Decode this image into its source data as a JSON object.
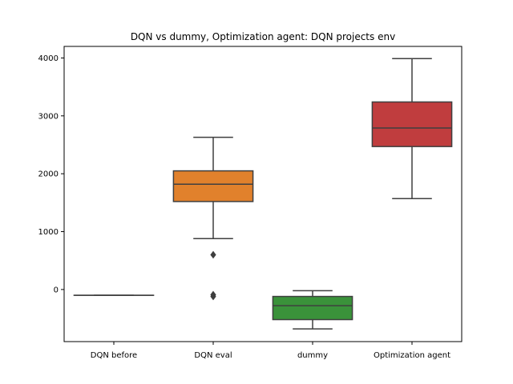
{
  "chart_data": {
    "type": "box",
    "title": "DQN vs dummy, Optimization agent: DQN projects env",
    "xlabel": "",
    "ylabel": "",
    "ylim": [
      -900,
      4200
    ],
    "yticks": [
      0,
      1000,
      2000,
      3000,
      4000
    ],
    "grid": false,
    "legend": "none",
    "categories": [
      "DQN before",
      "DQN eval",
      "dummy",
      "Optimization agent"
    ],
    "boxes": [
      {
        "category": "DQN before",
        "color": "#3274a1",
        "min": -100,
        "q1": -100,
        "median": -100,
        "q3": -100,
        "max": -100,
        "outliers": []
      },
      {
        "category": "DQN eval",
        "color": "#e1812c",
        "min": 880,
        "q1": 1520,
        "median": 1820,
        "q3": 2050,
        "max": 2630,
        "outliers": [
          600,
          -90,
          -120
        ]
      },
      {
        "category": "dummy",
        "color": "#3a923a",
        "min": -680,
        "q1": -520,
        "median": -280,
        "q3": -120,
        "max": -20,
        "outliers": []
      },
      {
        "category": "Optimization agent",
        "color": "#c03d3e",
        "min": 1570,
        "q1": 2470,
        "median": 2790,
        "q3": 3240,
        "max": 3990,
        "outliers": []
      }
    ]
  }
}
